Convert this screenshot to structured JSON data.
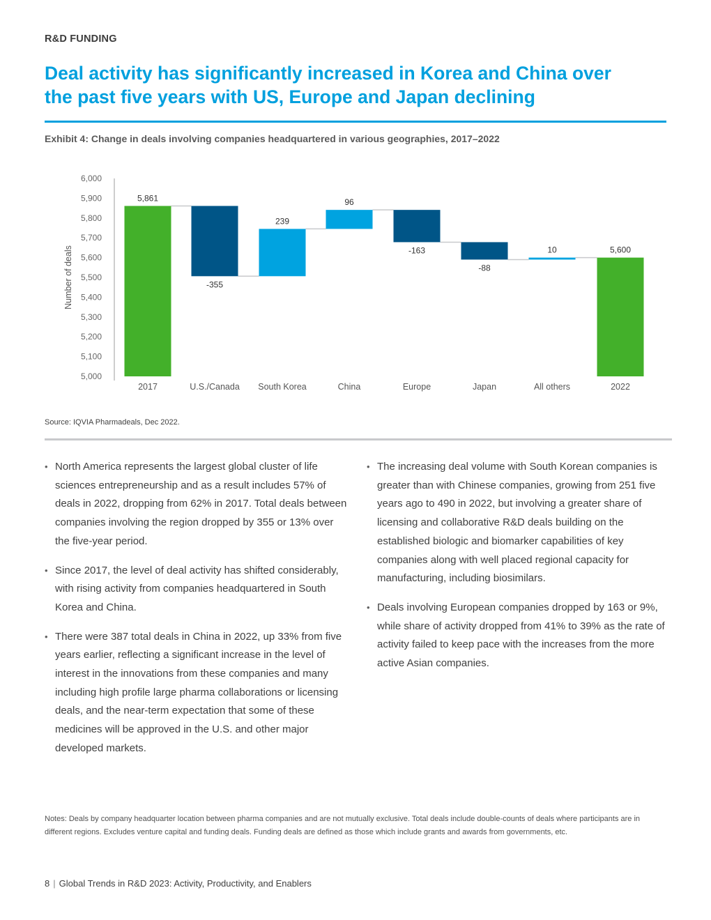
{
  "header": {
    "section_label": "R&D FUNDING",
    "headline_line1": "Deal activity has significantly increased in Korea and China over",
    "headline_line2": "the past five years with US, Europe and Japan declining",
    "exhibit_title": "Exhibit 4: Change in deals involving companies headquartered in various geographies, 2017–2022"
  },
  "colors": {
    "accent": "#00a0de",
    "total_bar": "#43b02a",
    "decrease_bar": "#005587",
    "increase_bar": "#00a3e0",
    "connector": "#c8c9cc"
  },
  "chart_data": {
    "type": "waterfall",
    "ylabel": "Number of deals",
    "ylim": [
      5000,
      6000
    ],
    "yticks": [
      5000,
      5100,
      5200,
      5300,
      5400,
      5500,
      5600,
      5700,
      5800,
      5900,
      6000
    ],
    "ytick_labels": [
      "5,000",
      "5,100",
      "5,200",
      "5,300",
      "5,400",
      "5,500",
      "5,600",
      "5,700",
      "5,800",
      "5,900",
      "6,000"
    ],
    "categories": [
      "2017",
      "U.S./Canada",
      "South Korea",
      "China",
      "Europe",
      "Japan",
      "All others",
      "2022"
    ],
    "values": [
      5861,
      -355,
      239,
      96,
      -163,
      -88,
      10,
      5600
    ],
    "kinds": [
      "total",
      "change",
      "change",
      "change",
      "change",
      "change",
      "change",
      "total"
    ],
    "data_labels": [
      "5,861",
      "-355",
      "239",
      "96",
      "-163",
      "-88",
      "10",
      "5,600"
    ],
    "grid": false
  },
  "source": "Source: IQVIA Pharmadeals, Dec 2022.",
  "left_bullets": [
    "North America represents the largest global cluster of life sciences entrepreneurship and as a result includes 57% of deals in 2022, dropping from 62% in 2017. Total deals between companies involving the region dropped by 355 or 13% over the five-year period.",
    "Since 2017, the level of deal activity has shifted considerably, with rising activity from companies headquartered in South Korea and China.",
    "There were 387 total deals in China in 2022, up 33% from five years earlier, reflecting a significant increase in the level of interest in the innovations from these companies and many including high profile large pharma collaborations or licensing deals, and the near-term expectation that some of these medicines will be approved in the U.S. and other major developed markets."
  ],
  "right_bullets": [
    "The increasing deal volume with South Korean companies is greater than with Chinese companies, growing from 251 five years ago to 490 in 2022, but involving a greater share of licensing and collaborative R&D deals building on the established biologic and biomarker capabilities of key companies along with well placed regional capacity for manufacturing, including biosimilars.",
    "Deals involving European companies dropped by 163 or 9%, while share of activity dropped from 41% to 39% as the rate of activity failed to keep pace with the increases from the more active Asian companies."
  ],
  "notes": "Notes: Deals by company headquarter location between pharma companies and are not mutually exclusive. Total deals include double-counts of deals where participants are in different regions. Excludes venture capital and funding deals. Funding deals are defined as those which include grants and awards from governments, etc.",
  "footer": {
    "page_number": "8",
    "separator": "|",
    "publication": "Global Trends in R&D 2023: Activity, Productivity, and Enablers"
  }
}
